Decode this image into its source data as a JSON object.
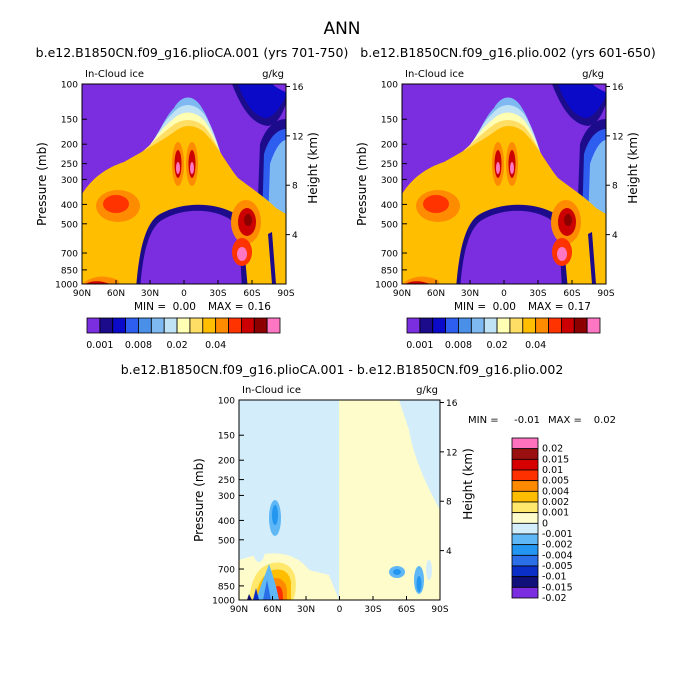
{
  "figure_title": "ANN",
  "colors": {
    "fill_scale": [
      "#7b2ee0",
      "#1c0c8c",
      "#0a0ac8",
      "#2d5ef0",
      "#4a8fe8",
      "#7fb9f2",
      "#bfe2f5",
      "#ffffb4",
      "#ffde66",
      "#ffbf00",
      "#ff8c00",
      "#ff3300",
      "#cc0000",
      "#8c0000",
      "#ff77c2"
    ],
    "diff_scale": [
      "#7b2ee0",
      "#10107a",
      "#0a2ec8",
      "#2a6ee8",
      "#2296f0",
      "#5fb8f5",
      "#d3edfb",
      "#fffccc",
      "#ffe86b",
      "#ffbd00",
      "#ff8a00",
      "#ff3000",
      "#d60000",
      "#9a1010",
      "#ff72be"
    ]
  },
  "chart_data": [
    {
      "type": "heatmap",
      "title": "b.e12.B1850CN.f09_g16.plioCA.001 (yrs 701-750)",
      "variable": "In-Cloud ice",
      "units": "g/kg",
      "ylabel": "Pressure (mb)",
      "ylabel_right": "Height (km)",
      "x_ticks": [
        "90N",
        "60N",
        "30N",
        "0",
        "30S",
        "60S",
        "90S"
      ],
      "y_ticks": [
        "100",
        "150",
        "200",
        "250",
        "300",
        "400",
        "500",
        "700",
        "850",
        "1000"
      ],
      "y_right_ticks": [
        "16",
        "12",
        "8",
        "4"
      ],
      "stats": {
        "min_label": "MIN =",
        "min": "0.00",
        "max_label": "MAX =",
        "max": "0.16"
      },
      "colorbar_labels": [
        "0.001",
        "0.008",
        "0.02",
        "0.04"
      ]
    },
    {
      "type": "heatmap",
      "title": "b.e12.B1850CN.f09_g16.plio.002 (yrs 601-650)",
      "variable": "In-Cloud ice",
      "units": "g/kg",
      "ylabel": "Pressure (mb)",
      "ylabel_right": "Height (km)",
      "x_ticks": [
        "90N",
        "60N",
        "30N",
        "0",
        "30S",
        "60S",
        "90S"
      ],
      "y_ticks": [
        "100",
        "150",
        "200",
        "250",
        "300",
        "400",
        "500",
        "700",
        "850",
        "1000"
      ],
      "y_right_ticks": [
        "16",
        "12",
        "8",
        "4"
      ],
      "stats": {
        "min_label": "MIN =",
        "min": "0.00",
        "max_label": "MAX =",
        "max": "0.17"
      },
      "colorbar_labels": [
        "0.001",
        "0.008",
        "0.02",
        "0.04"
      ]
    },
    {
      "type": "heatmap",
      "title": "b.e12.B1850CN.f09_g16.plioCA.001 - b.e12.B1850CN.f09_g16.plio.002",
      "variable": "In-Cloud ice",
      "units": "g/kg",
      "ylabel": "Pressure (mb)",
      "ylabel_right": "Height (km)",
      "x_ticks": [
        "90N",
        "60N",
        "30N",
        "0",
        "30S",
        "60S",
        "90S"
      ],
      "y_ticks": [
        "100",
        "150",
        "200",
        "250",
        "300",
        "400",
        "500",
        "700",
        "850",
        "1000"
      ],
      "y_right_ticks": [
        "16",
        "12",
        "8",
        "4"
      ],
      "stats": {
        "min_label": "MIN =",
        "min": "-0.01",
        "max_label": "MAX =",
        "max": "0.02"
      },
      "colorbar_labels": [
        "0.02",
        "0.015",
        "0.01",
        "0.005",
        "0.004",
        "0.002",
        "0.001",
        "0",
        "-0.001",
        "-0.002",
        "-0.004",
        "-0.005",
        "-0.01",
        "-0.015",
        "-0.02"
      ]
    }
  ]
}
